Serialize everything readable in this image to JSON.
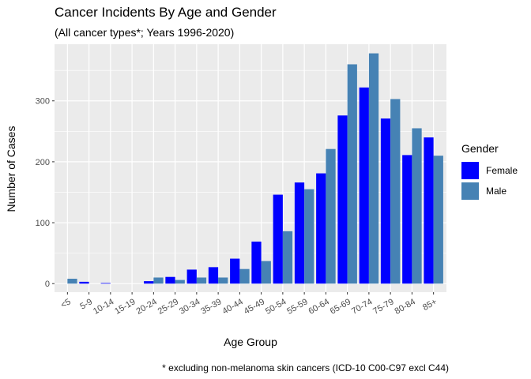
{
  "chart_data": {
    "type": "bar",
    "title": "Cancer Incidents By Age and Gender",
    "subtitle": "(All cancer types*; Years 1996-2020)",
    "xlabel": "Age Group",
    "ylabel": "Number of Cases",
    "caption": "* excluding non-melanoma skin cancers (ICD-10 C00-C97 excl C44)",
    "legend_title": "Gender",
    "legend_position": "right",
    "grid": true,
    "ylim": [
      -14,
      393
    ],
    "yticks": [
      0,
      100,
      200,
      300
    ],
    "categories": [
      "<5",
      "5-9",
      "10-14",
      "15-19",
      "20-24",
      "25-29",
      "30-34",
      "35-39",
      "40-44",
      "45-49",
      "50-54",
      "55-59",
      "60-64",
      "65-69",
      "70-74",
      "75-79",
      "80-84",
      "85+"
    ],
    "series": [
      {
        "name": "Female",
        "color": "#0000ff",
        "values": [
          null,
          3,
          1,
          null,
          4,
          11,
          23,
          27,
          41,
          69,
          146,
          166,
          181,
          276,
          322,
          271,
          211,
          240
        ]
      },
      {
        "name": "Male",
        "color": "#4682b4",
        "values": [
          8,
          null,
          null,
          null,
          10,
          6,
          10,
          10,
          24,
          37,
          86,
          155,
          221,
          360,
          378,
          303,
          255,
          210
        ]
      }
    ]
  }
}
